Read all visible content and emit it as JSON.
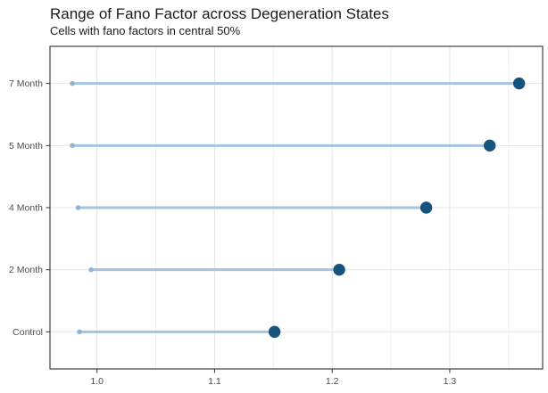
{
  "chart_data": {
    "type": "lollipop-range",
    "title": "Range of Fano Factor across Degeneration States",
    "subtitle": "Cells with fano factors in central 50%",
    "categories": [
      "7 Month",
      "5 Month",
      "4 Month",
      "2 Month",
      "Control"
    ],
    "series": [
      {
        "name": "range-start",
        "values": [
          0.979,
          0.979,
          0.984,
          0.995,
          0.985
        ]
      },
      {
        "name": "range-end",
        "values": [
          1.359,
          1.334,
          1.28,
          1.206,
          1.151
        ]
      }
    ],
    "xlabel": "",
    "ylabel": "",
    "xlim": [
      0.96,
      1.379
    ],
    "x_major_ticks": [
      1.0,
      1.1,
      1.2,
      1.3
    ],
    "x_tick_labels": [
      "1.0",
      "1.1",
      "1.2",
      "1.3"
    ],
    "x_minor_ticks": [
      1.05,
      1.15,
      1.25,
      1.35
    ],
    "grid": "vertical major+minor, horizontal major per category",
    "legend": "none",
    "colors": {
      "segment": "#a6c3e0",
      "start_dot": "#8fb2d6",
      "end_dot": "#16547e",
      "grid_major": "#e4e4e4",
      "grid_minor": "#efefef",
      "panel_border": "#3f3f3f",
      "tick": "#333333",
      "axis_text": "#4d4d4d",
      "background": "#ffffff"
    }
  }
}
